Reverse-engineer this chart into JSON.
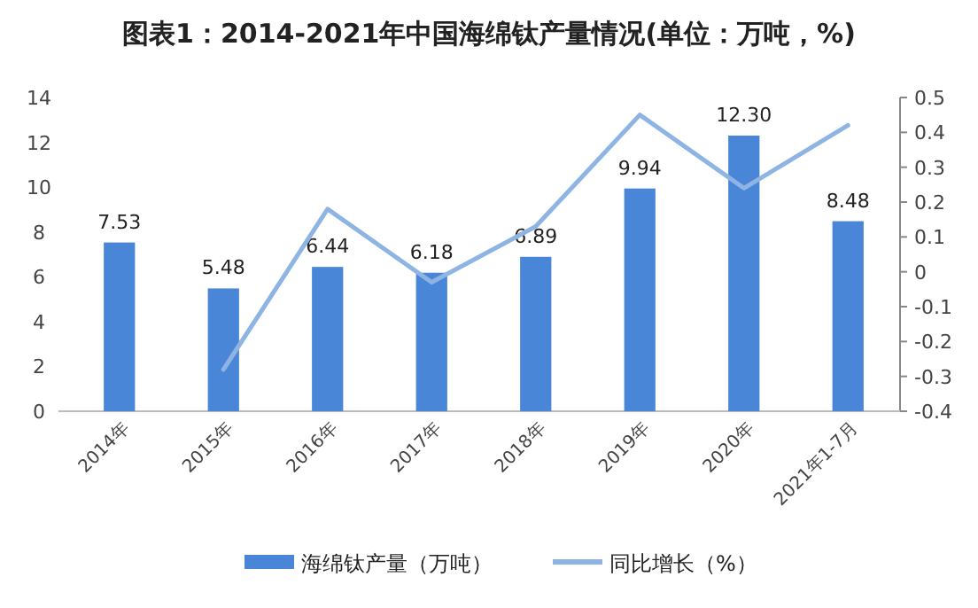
{
  "chart_data": {
    "type": "bar",
    "title": "图表1：2014-2021年中国海绵钛产量情况(单位：万吨，%)",
    "categories": [
      "2014年",
      "2015年",
      "2016年",
      "2017年",
      "2018年",
      "2019年",
      "2020年",
      "2021年1-7月"
    ],
    "series": [
      {
        "name": "海绵钛产量（万吨）",
        "color": "#4a86d8",
        "values": [
          7.53,
          5.48,
          6.44,
          6.18,
          6.89,
          9.94,
          12.3,
          8.48
        ],
        "value_labels": [
          "7.53",
          "5.48",
          "6.44",
          "6.18",
          "6.89",
          "9.94",
          "12.30",
          "8.48"
        ]
      },
      {
        "name": "同比增长（%）",
        "type": "line",
        "axis": "y2",
        "color": "#8eb4e3",
        "values": [
          null,
          -0.28,
          0.18,
          -0.03,
          0.13,
          0.45,
          0.24,
          0.42
        ]
      }
    ],
    "ylim": [
      0,
      14
    ],
    "yticks": [
      0,
      2,
      4,
      6,
      8,
      10,
      12,
      14
    ],
    "y2lim": [
      -0.4,
      0.5
    ],
    "y2ticks": [
      -0.4,
      -0.3,
      -0.2,
      -0.1,
      0,
      0.1,
      0.2,
      0.3,
      0.4,
      0.5
    ],
    "grid": false,
    "legend": "bottom"
  }
}
